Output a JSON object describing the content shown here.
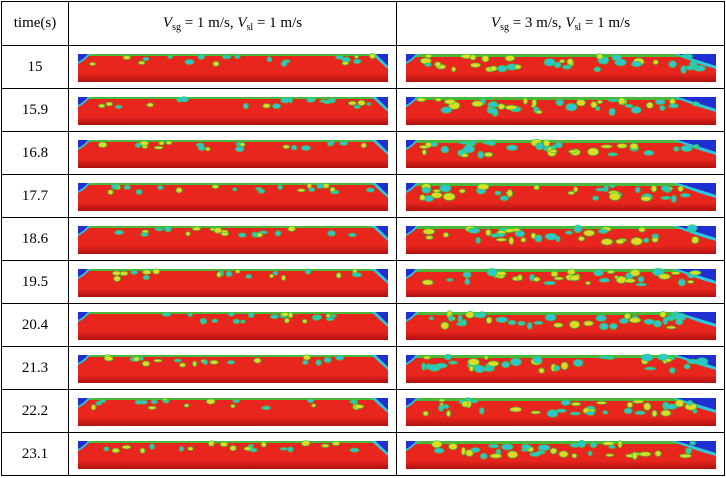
{
  "header": {
    "time_label": "time(s)",
    "col1": {
      "var1": "V",
      "sub1": "sg",
      "val1": " = 1 m/s, ",
      "var2": "V",
      "sub2": "sl",
      "val2": " = 1 m/s"
    },
    "col2": {
      "var1": "V",
      "sub1": "sg",
      "val1": " = 3 m/s, ",
      "var2": "V",
      "sub2": "sl",
      "val2": " = 1 m/s"
    }
  },
  "rows": [
    {
      "time": "15"
    },
    {
      "time": "15.9"
    },
    {
      "time": "16.8"
    },
    {
      "time": "17.7"
    },
    {
      "time": "18.6"
    },
    {
      "time": "19.5"
    },
    {
      "time": "20.4"
    },
    {
      "time": "21.3"
    },
    {
      "time": "22.2"
    },
    {
      "time": "23.1"
    }
  ],
  "colors": {
    "liquid": "#e8261e",
    "liquid_dark": "#b01010",
    "gas": "#1f2fd0",
    "cyan": "#29c8e0",
    "green": "#30d040",
    "yellow": "#f0e020"
  }
}
